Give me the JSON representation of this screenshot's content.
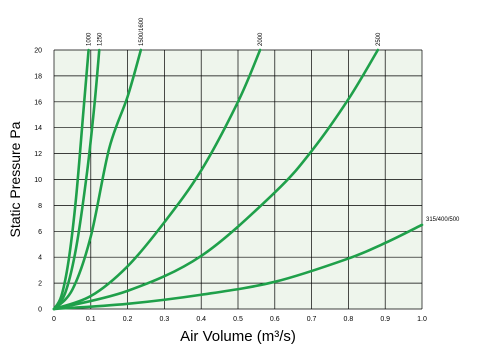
{
  "chart_data": {
    "type": "line",
    "title": "",
    "xlabel": "Air Volume (m³/s)",
    "ylabel": "Static Pressure Pa",
    "xlim": [
      0,
      1.0
    ],
    "ylim": [
      0,
      20
    ],
    "x_ticks": [
      "0",
      "0.1",
      "0.2",
      "0.3",
      "0.4",
      "0.5",
      "0.6",
      "0.7",
      "0.8",
      "0.9",
      "1.0"
    ],
    "y_ticks": [
      "0",
      "2",
      "4",
      "6",
      "8",
      "10",
      "12",
      "14",
      "16",
      "18",
      "20"
    ],
    "grid": true,
    "background_color": "#eef5ec",
    "line_color": "#1fa04a",
    "series": [
      {
        "name": "1000",
        "label_position": "top",
        "points": [
          [
            0,
            0
          ],
          [
            0.02,
            1.0
          ],
          [
            0.04,
            3.8
          ],
          [
            0.06,
            8.6
          ],
          [
            0.08,
            15.3
          ],
          [
            0.094,
            20
          ]
        ]
      },
      {
        "name": "1250",
        "label_position": "top",
        "points": [
          [
            0,
            0
          ],
          [
            0.03,
            1.2
          ],
          [
            0.06,
            4.7
          ],
          [
            0.09,
            10.6
          ],
          [
            0.11,
            15.8
          ],
          [
            0.123,
            20
          ]
        ]
      },
      {
        "name": "1500/1600",
        "label_position": "top",
        "points": [
          [
            0,
            0
          ],
          [
            0.05,
            1.5
          ],
          [
            0.1,
            5.6
          ],
          [
            0.15,
            12.4
          ],
          [
            0.2,
            16.4
          ],
          [
            0.236,
            20
          ]
        ]
      },
      {
        "name": "2000",
        "label_position": "top",
        "points": [
          [
            0,
            0
          ],
          [
            0.1,
            1.0
          ],
          [
            0.2,
            3.3
          ],
          [
            0.3,
            6.7
          ],
          [
            0.4,
            10.7
          ],
          [
            0.5,
            16.0
          ],
          [
            0.56,
            20
          ]
        ]
      },
      {
        "name": "2500",
        "label_position": "top",
        "points": [
          [
            0,
            0
          ],
          [
            0.2,
            1.4
          ],
          [
            0.4,
            4.1
          ],
          [
            0.6,
            9.0
          ],
          [
            0.7,
            12.2
          ],
          [
            0.8,
            16.2
          ],
          [
            0.88,
            20
          ]
        ]
      },
      {
        "name": "315/400/500",
        "label_position": "right",
        "points": [
          [
            0,
            0
          ],
          [
            0.2,
            0.4
          ],
          [
            0.4,
            1.1
          ],
          [
            0.6,
            2.1
          ],
          [
            0.8,
            3.9
          ],
          [
            0.9,
            5.1
          ],
          [
            1.0,
            6.5
          ]
        ]
      }
    ]
  }
}
